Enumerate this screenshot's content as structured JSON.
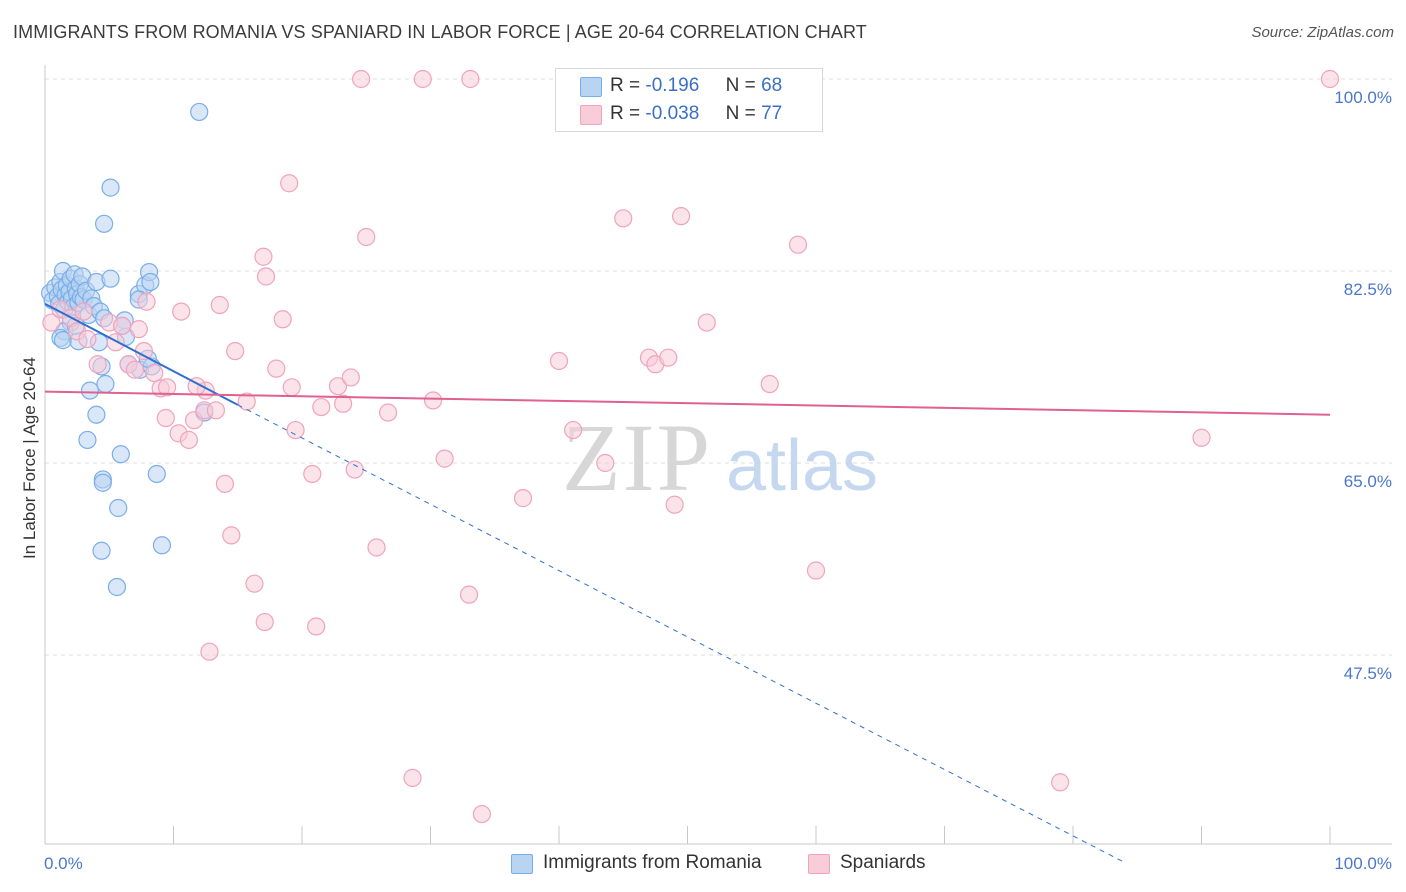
{
  "chart_data": {
    "type": "scatter",
    "title": "IMMIGRANTS FROM ROMANIA VS SPANIARD IN LABOR FORCE | AGE 20-64 CORRELATION CHART",
    "source": "Source: ZipAtlas.com",
    "xlabel": "",
    "ylabel": "In Labor Force | Age 20-64",
    "xlim": [
      0,
      100
    ],
    "ylim": [
      30,
      101.5
    ],
    "x_ticks": [
      0,
      10,
      20,
      30,
      40,
      50,
      60,
      70,
      80,
      90,
      100
    ],
    "x_tick_labels": {
      "left": "0.0%",
      "right": "100.0%"
    },
    "y_gridlines": [
      47.5,
      65.0,
      82.5,
      100.0
    ],
    "y_tick_labels": [
      "47.5%",
      "65.0%",
      "82.5%",
      "100.0%"
    ],
    "watermark": {
      "zip": "ZIP",
      "atlas": "atlas"
    },
    "legend": {
      "rows": [
        {
          "r_label": "R =",
          "r_value": "-0.196",
          "n_label": "N =",
          "n_value": "68"
        },
        {
          "r_label": "R =",
          "r_value": "-0.038",
          "n_label": "N =",
          "n_value": "77"
        }
      ]
    },
    "series": [
      {
        "name": "Immigrants from Romania",
        "color": "#7aaee8",
        "fill": "#b9d3f3",
        "line_color": "#2f6fd0",
        "trend": {
          "x0": 0,
          "y0": 79.5,
          "x1": 15,
          "y1": 70.3,
          "dashed_to_x": 84,
          "dashed_to_y": 28.6
        },
        "points": [
          [
            0.4,
            80.5
          ],
          [
            0.6,
            79.8
          ],
          [
            0.8,
            81.0
          ],
          [
            1.0,
            80.2
          ],
          [
            1.1,
            79.5
          ],
          [
            1.2,
            81.5
          ],
          [
            1.3,
            80.8
          ],
          [
            1.4,
            82.5
          ],
          [
            1.5,
            79.0
          ],
          [
            1.6,
            80.3
          ],
          [
            1.7,
            81.2
          ],
          [
            1.8,
            79.7
          ],
          [
            1.9,
            80.6
          ],
          [
            2.0,
            81.8
          ],
          [
            2.1,
            80.0
          ],
          [
            2.2,
            79.2
          ],
          [
            2.3,
            82.2
          ],
          [
            2.4,
            80.9
          ],
          [
            2.5,
            80.4
          ],
          [
            2.6,
            79.6
          ],
          [
            2.7,
            81.3
          ],
          [
            2.8,
            80.1
          ],
          [
            2.9,
            82.0
          ],
          [
            3.0,
            79.9
          ],
          [
            3.2,
            80.7
          ],
          [
            3.4,
            78.5
          ],
          [
            3.6,
            80.0
          ],
          [
            3.8,
            79.3
          ],
          [
            4.0,
            81.5
          ],
          [
            4.3,
            78.8
          ],
          [
            2.0,
            77.8
          ],
          [
            1.5,
            77.0
          ],
          [
            1.2,
            76.4
          ],
          [
            1.4,
            76.2
          ],
          [
            2.6,
            76.1
          ],
          [
            2.4,
            77.5
          ],
          [
            4.6,
            78.2
          ],
          [
            4.2,
            76.0
          ],
          [
            6.2,
            78.0
          ],
          [
            6.3,
            76.5
          ],
          [
            5.1,
            81.8
          ],
          [
            7.3,
            80.4
          ],
          [
            7.8,
            81.2
          ],
          [
            8.1,
            82.4
          ],
          [
            8.2,
            81.5
          ],
          [
            4.4,
            73.8
          ],
          [
            4.7,
            72.2
          ],
          [
            7.4,
            73.5
          ],
          [
            3.5,
            71.6
          ],
          [
            6.5,
            74.0
          ],
          [
            4.0,
            69.4
          ],
          [
            3.3,
            67.1
          ],
          [
            5.9,
            65.8
          ],
          [
            4.5,
            63.5
          ],
          [
            4.5,
            63.2
          ],
          [
            5.7,
            60.9
          ],
          [
            4.4,
            57.0
          ],
          [
            5.6,
            53.7
          ],
          [
            9.1,
            57.5
          ],
          [
            8.7,
            64.0
          ],
          [
            8.3,
            73.8
          ],
          [
            12.4,
            69.6
          ],
          [
            12.0,
            97.0
          ],
          [
            5.1,
            90.1
          ],
          [
            4.6,
            86.8
          ],
          [
            7.3,
            79.9
          ],
          [
            6.0,
            77.5
          ],
          [
            8.0,
            74.5
          ]
        ]
      },
      {
        "name": "Spaniards",
        "color": "#f0a3bd",
        "fill": "#f8ccd9",
        "line_color": "#e0608f",
        "trend": {
          "x0": 0,
          "y0": 71.5,
          "x1": 100,
          "y1": 69.4
        },
        "points": [
          [
            0.5,
            77.8
          ],
          [
            1.2,
            79.0
          ],
          [
            2.0,
            78.2
          ],
          [
            2.5,
            77.0
          ],
          [
            3.0,
            78.8
          ],
          [
            3.3,
            76.3
          ],
          [
            4.1,
            74.0
          ],
          [
            5.0,
            77.8
          ],
          [
            5.5,
            76.0
          ],
          [
            6.0,
            77.5
          ],
          [
            6.5,
            74.0
          ],
          [
            7.0,
            73.5
          ],
          [
            7.3,
            77.2
          ],
          [
            7.7,
            75.2
          ],
          [
            8.5,
            73.2
          ],
          [
            9.0,
            71.8
          ],
          [
            9.4,
            69.1
          ],
          [
            9.5,
            71.9
          ],
          [
            10.4,
            67.7
          ],
          [
            10.6,
            78.8
          ],
          [
            11.2,
            67.1
          ],
          [
            12.5,
            71.6
          ],
          [
            11.8,
            72.0
          ],
          [
            11.6,
            68.9
          ],
          [
            12.4,
            69.8
          ],
          [
            13.3,
            69.8
          ],
          [
            13.6,
            79.4
          ],
          [
            14.0,
            63.1
          ],
          [
            14.5,
            58.4
          ],
          [
            15.7,
            70.6
          ],
          [
            16.3,
            54.0
          ],
          [
            17.0,
            83.8
          ],
          [
            17.2,
            82.0
          ],
          [
            18.0,
            73.6
          ],
          [
            18.5,
            78.1
          ],
          [
            19.2,
            71.9
          ],
          [
            19.5,
            68.0
          ],
          [
            20.8,
            64.0
          ],
          [
            21.1,
            50.1
          ],
          [
            21.5,
            70.1
          ],
          [
            22.8,
            72.0
          ],
          [
            23.2,
            70.4
          ],
          [
            23.8,
            72.8
          ],
          [
            24.1,
            64.4
          ],
          [
            24.6,
            100.0
          ],
          [
            25.0,
            85.6
          ],
          [
            25.8,
            57.3
          ],
          [
            26.7,
            69.6
          ],
          [
            28.6,
            36.3
          ],
          [
            29.4,
            100.0
          ],
          [
            30.2,
            70.7
          ],
          [
            31.1,
            65.4
          ],
          [
            33.0,
            53.0
          ],
          [
            33.1,
            100.0
          ],
          [
            34.0,
            33.0
          ],
          [
            37.2,
            61.8
          ],
          [
            40.0,
            74.3
          ],
          [
            41.1,
            68.0
          ],
          [
            43.6,
            65.0
          ],
          [
            45.0,
            87.3
          ],
          [
            47.0,
            74.6
          ],
          [
            47.5,
            74.0
          ],
          [
            48.5,
            74.6
          ],
          [
            49.0,
            61.2
          ],
          [
            49.5,
            87.5
          ],
          [
            51.5,
            77.8
          ],
          [
            56.4,
            72.2
          ],
          [
            58.6,
            84.9
          ],
          [
            60.0,
            55.2
          ],
          [
            79.0,
            35.9
          ],
          [
            90.0,
            67.3
          ],
          [
            100.0,
            100.0
          ],
          [
            14.8,
            75.2
          ],
          [
            7.9,
            79.7
          ],
          [
            17.1,
            50.5
          ],
          [
            19.0,
            90.5
          ],
          [
            12.8,
            47.8
          ]
        ]
      }
    ]
  },
  "bottom_legend": [
    "Immigrants from Romania",
    "Spaniards"
  ]
}
